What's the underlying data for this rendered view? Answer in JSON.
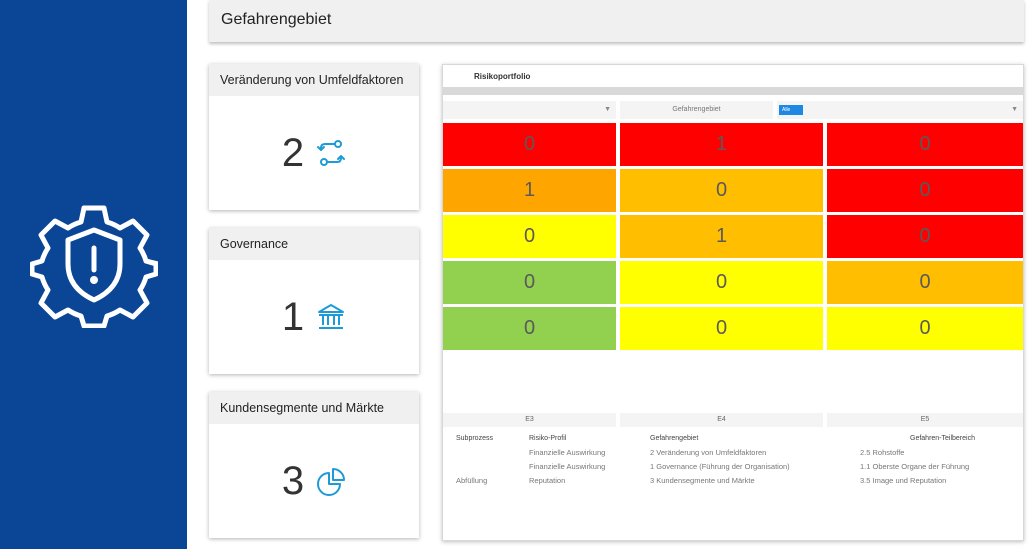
{
  "sidebar": {
    "icon": "gear-shield-alert-icon",
    "background": "#0a4596"
  },
  "header": {
    "title": "Gefahrengebiet"
  },
  "cards": [
    {
      "title": "Veränderung von Umfeldfaktoren",
      "count": "2",
      "icon": "transfer-arrows-icon"
    },
    {
      "title": "Governance",
      "count": "1",
      "icon": "institution-icon"
    },
    {
      "title": "Kundensegmente und Märkte",
      "count": "3",
      "icon": "pie-chart-icon"
    }
  ],
  "panel": {
    "title": "Risikoportfolio",
    "filters": {
      "first": {
        "value": ""
      },
      "second": {
        "value": "Gefahrengebiet"
      },
      "third": {
        "tag": "Alle"
      }
    },
    "columns": [
      "E3",
      "E4",
      "E5"
    ],
    "grid": [
      [
        {
          "v": "0",
          "c": "#ff0000"
        },
        {
          "v": "1",
          "c": "#ff0000"
        },
        {
          "v": "0",
          "c": "#ff0000"
        }
      ],
      [
        {
          "v": "1",
          "c": "#ffa500"
        },
        {
          "v": "0",
          "c": "#ffbf00"
        },
        {
          "v": "0",
          "c": "#ff0000"
        }
      ],
      [
        {
          "v": "0",
          "c": "#ffff00"
        },
        {
          "v": "1",
          "c": "#ffbf00"
        },
        {
          "v": "0",
          "c": "#ff0000"
        }
      ],
      [
        {
          "v": "0",
          "c": "#92d050"
        },
        {
          "v": "0",
          "c": "#ffff00"
        },
        {
          "v": "0",
          "c": "#ffbf00"
        }
      ],
      [
        {
          "v": "0",
          "c": "#92d050"
        },
        {
          "v": "0",
          "c": "#ffff00"
        },
        {
          "v": "0",
          "c": "#ffff00"
        }
      ]
    ],
    "table": {
      "headers": [
        "Subprozess",
        "Risiko-Profil",
        "Gefahrengebiet",
        "Gefahren-Teilbereich"
      ],
      "rows": [
        [
          "",
          "Finanzielle Auswirkung",
          "2 Veränderung von Umfeldfaktoren",
          "2.5 Rohstoffe"
        ],
        [
          "",
          "Finanzielle Auswirkung",
          "1 Governance (Führung der Organisation)",
          "1.1 Oberste Organe der Führung"
        ],
        [
          "Abfüllung",
          "Reputation",
          "3 Kundensegmente und Märkte",
          "3.5 Image und Reputation"
        ]
      ]
    }
  }
}
